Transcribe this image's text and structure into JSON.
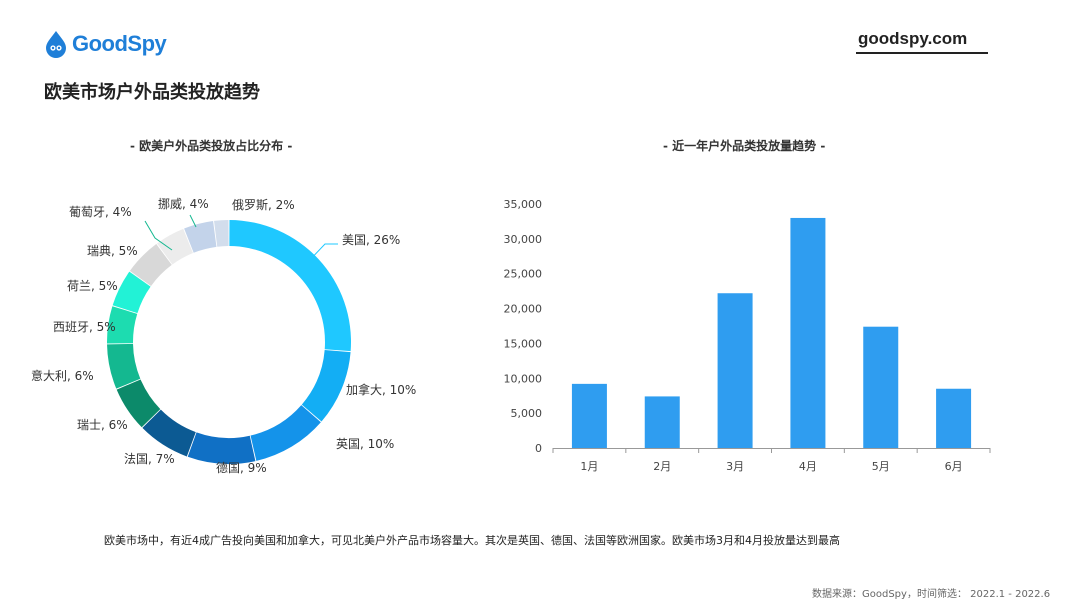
{
  "brand": {
    "logo_text": "GoodSpy",
    "site": "goodspy.com"
  },
  "page_title": "欧美市场户外品类投放趋势",
  "summary": "欧美市场中，有近4成广告投向美国和加拿大，可见北美户外产品市场容量大。其次是英国、德国、法国等欧洲国家。欧美市场3月和4月投放量达到最高",
  "footer": "数据来源：GoodSpy，时间筛选： 2022.1 - 2022.6",
  "chart_data": [
    {
      "type": "pie",
      "title": "- 欧美户外品类投放占比分布 -",
      "slices": [
        {
          "label": "美国",
          "value": 26,
          "text": "美国, 26%",
          "color": "#1fc8ff"
        },
        {
          "label": "加拿大",
          "value": 10,
          "text": "加拿大, 10%",
          "color": "#13aef4"
        },
        {
          "label": "英国",
          "value": 10,
          "text": "英国, 10%",
          "color": "#1493ea"
        },
        {
          "label": "德国",
          "value": 9,
          "text": "德国, 9%",
          "color": "#1070c5"
        },
        {
          "label": "法国",
          "value": 7,
          "text": "法国, 7%",
          "color": "#0c5a93"
        },
        {
          "label": "瑞士",
          "value": 6,
          "text": "瑞士, 6%",
          "color": "#0c8a6a"
        },
        {
          "label": "意大利",
          "value": 6,
          "text": "意大利, 6%",
          "color": "#14b890"
        },
        {
          "label": "西班牙",
          "value": 5,
          "text": "西班牙, 5%",
          "color": "#1ddcb0"
        },
        {
          "label": "荷兰",
          "value": 5,
          "text": "荷兰, 5%",
          "color": "#22f2d6"
        },
        {
          "label": "瑞典",
          "value": 5,
          "text": "瑞典, 5%",
          "color": "#d8d8d8"
        },
        {
          "label": "葡萄牙",
          "value": 4,
          "text": "葡萄牙, 4%",
          "color": "#ececec"
        },
        {
          "label": "挪威",
          "value": 4,
          "text": "挪威, 4%",
          "color": "#c3d3ea"
        },
        {
          "label": "俄罗斯",
          "value": 2,
          "text": "俄罗斯, 2%",
          "color": "#d2ddec"
        }
      ]
    },
    {
      "type": "bar",
      "title": "- 近一年户外品类投放量趋势 -",
      "categories": [
        "1月",
        "2月",
        "3月",
        "4月",
        "5月",
        "6月"
      ],
      "values": [
        9200,
        7400,
        22200,
        33000,
        17400,
        8500
      ],
      "ylim": [
        0,
        35000
      ],
      "yticks": [
        0,
        5000,
        10000,
        15000,
        20000,
        25000,
        30000,
        35000
      ],
      "ytick_labels": [
        "0",
        "5,000",
        "10,000",
        "15,000",
        "20,000",
        "25,000",
        "30,000",
        "35,000"
      ],
      "color": "#2f9df0",
      "grid": false
    }
  ]
}
